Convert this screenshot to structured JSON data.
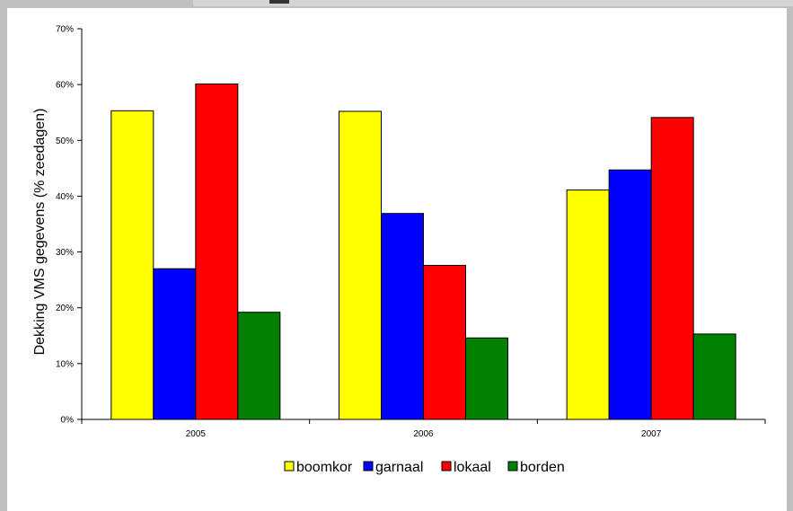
{
  "chart_data": {
    "type": "bar",
    "categories": [
      "2005",
      "2006",
      "2007"
    ],
    "series": [
      {
        "name": "boomkor",
        "color": "#ffff00",
        "values": [
          55.3,
          55.2,
          41.1
        ]
      },
      {
        "name": "garnaal",
        "color": "#0000ff",
        "values": [
          27.0,
          36.9,
          44.7
        ]
      },
      {
        "name": "lokaal",
        "color": "#ff0000",
        "values": [
          60.1,
          27.6,
          54.1
        ]
      },
      {
        "name": "borden",
        "color": "#008000",
        "values": [
          19.2,
          14.6,
          15.3
        ]
      }
    ],
    "ylabel": "Dekking VMS gegevens  (% zeedagen)",
    "xlabel": "",
    "ylim": [
      0,
      70
    ],
    "yticks": [
      "0%",
      "10%",
      "20%",
      "30%",
      "40%",
      "50%",
      "60%",
      "70%"
    ],
    "grid": false,
    "legend_position": "bottom-center"
  }
}
